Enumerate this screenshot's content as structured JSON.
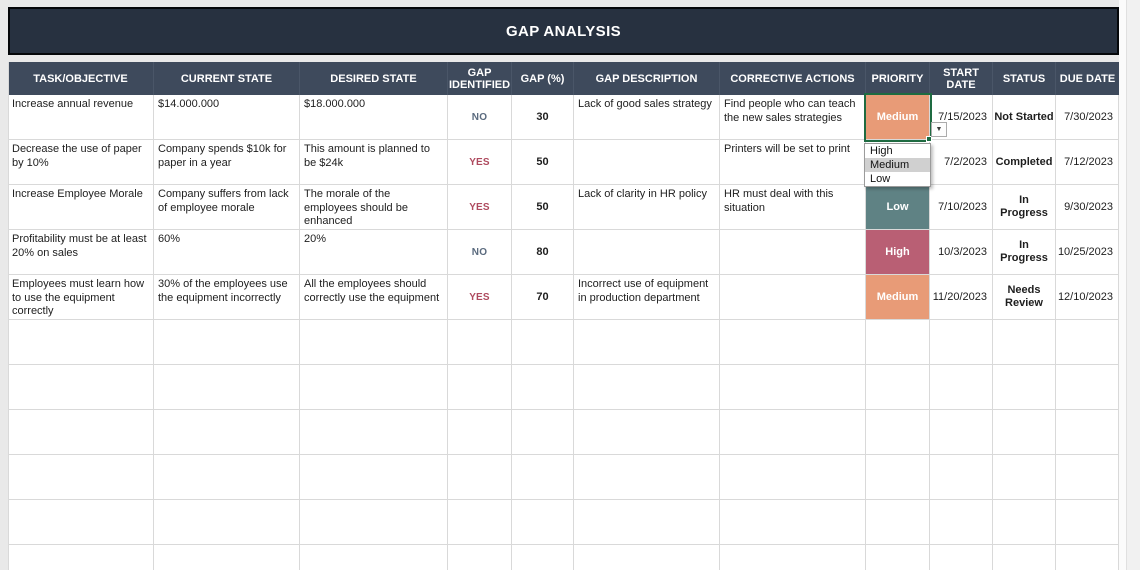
{
  "title": "GAP ANALYSIS",
  "columns": [
    {
      "key": "task",
      "label": "TASK/OBJECTIVE"
    },
    {
      "key": "current_state",
      "label": "CURRENT STATE"
    },
    {
      "key": "desired_state",
      "label": "DESIRED STATE"
    },
    {
      "key": "gap_identified",
      "label": "GAP IDENTIFIED"
    },
    {
      "key": "gap_pct",
      "label": "GAP (%)"
    },
    {
      "key": "gap_description",
      "label": "GAP DESCRIPTION"
    },
    {
      "key": "corrective_actions",
      "label": "CORRECTIVE ACTIONS"
    },
    {
      "key": "priority",
      "label": "PRIORITY"
    },
    {
      "key": "start_date",
      "label": "START DATE"
    },
    {
      "key": "status",
      "label": "STATUS"
    },
    {
      "key": "due_date",
      "label": "DUE DATE"
    }
  ],
  "rows": [
    {
      "task": "Increase annual revenue",
      "current_state": "$14.000.000",
      "desired_state": "$18.000.000",
      "gap_identified": "NO",
      "gap_pct": "30",
      "gap_description": "Lack of good sales strategy",
      "corrective_actions": "Find people who can teach the new sales strategies",
      "priority": "Medium",
      "start_date": "7/15/2023",
      "status": "Not Started",
      "due_date": "7/30/2023"
    },
    {
      "task": "Decrease the use of paper by 10%",
      "current_state": "Company spends $10k for paper in a year",
      "desired_state": "This amount is planned to be $24k",
      "gap_identified": "YES",
      "gap_pct": "50",
      "gap_description": "",
      "corrective_actions": "Printers will be set to print",
      "priority": "",
      "start_date": "7/2/2023",
      "status": "Completed",
      "due_date": "7/12/2023"
    },
    {
      "task": "Increase Employee Morale",
      "current_state": "Company suffers from lack of employee morale",
      "desired_state": "The morale of the employees should be enhanced",
      "gap_identified": "YES",
      "gap_pct": "50",
      "gap_description": "Lack of clarity in HR policy",
      "corrective_actions": "HR must deal with this situation",
      "priority": "Low",
      "start_date": "7/10/2023",
      "status": "In Progress",
      "due_date": "9/30/2023"
    },
    {
      "task": "Profitability must be at least 20% on sales",
      "current_state": "60%",
      "desired_state": "20%",
      "gap_identified": "NO",
      "gap_pct": "80",
      "gap_description": "",
      "corrective_actions": "",
      "priority": "High",
      "start_date": "10/3/2023",
      "status": "In Progress",
      "due_date": "10/25/2023"
    },
    {
      "task": "Employees must learn how to use the equipment correctly",
      "current_state": "30% of the employees use the equipment incorrectly",
      "desired_state": "All the employees should correctly use the equipment",
      "gap_identified": "YES",
      "gap_pct": "70",
      "gap_description": "Incorrect use of equipment in production department",
      "corrective_actions": "",
      "priority": "Medium",
      "start_date": "11/20/2023",
      "status": "Needs Review",
      "due_date": "12/10/2023"
    }
  ],
  "priority_dropdown": {
    "options": [
      "High",
      "Medium",
      "Low"
    ],
    "highlighted": "Medium",
    "arrow_icon": "▼"
  },
  "colors": {
    "title_bar": "#273140",
    "header_bg": "#3e4a5c",
    "selection_border": "#1e6b41",
    "priority": {
      "High": "#b95f74",
      "Medium": "#e89b77",
      "Low": "#5f8284"
    },
    "flags": {
      "YES": "#ae4a5e",
      "NO": "#5a6a7e"
    }
  }
}
